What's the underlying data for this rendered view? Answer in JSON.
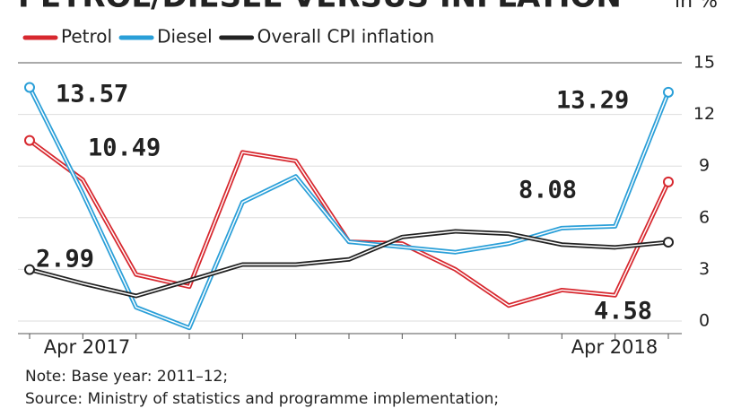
{
  "chart_data": {
    "type": "line",
    "title": "PETROL/DIESEL VERSUS INFLATION",
    "unit": "in %",
    "categories": [
      "Apr 2017",
      null,
      null,
      null,
      null,
      null,
      null,
      null,
      null,
      null,
      null,
      null,
      "Apr 2018"
    ],
    "series": [
      {
        "name": "Petrol",
        "color": "#d7282f",
        "values": [
          10.49,
          8.2,
          2.7,
          2.0,
          9.8,
          9.3,
          4.6,
          4.5,
          3.0,
          0.9,
          1.8,
          1.5,
          8.08
        ]
      },
      {
        "name": "Diesel",
        "color": "#2a9fd8",
        "values": [
          13.57,
          7.4,
          0.8,
          -0.4,
          6.9,
          8.4,
          4.6,
          4.3,
          4.0,
          4.5,
          5.4,
          5.5,
          13.29
        ]
      },
      {
        "name": "Overall CPI inflation",
        "color": "#222222",
        "values": [
          2.99,
          2.18,
          1.46,
          2.36,
          3.28,
          3.28,
          3.58,
          4.88,
          5.21,
          5.07,
          4.44,
          4.28,
          4.58
        ]
      }
    ],
    "ylim": [
      -0.5,
      15
    ],
    "yticks": [
      0,
      3,
      6,
      9,
      12,
      15
    ],
    "grid": true,
    "notes": [
      "Note: Base year: 2011–12;",
      "Source: Ministry of statistics and programme implementation;"
    ]
  }
}
